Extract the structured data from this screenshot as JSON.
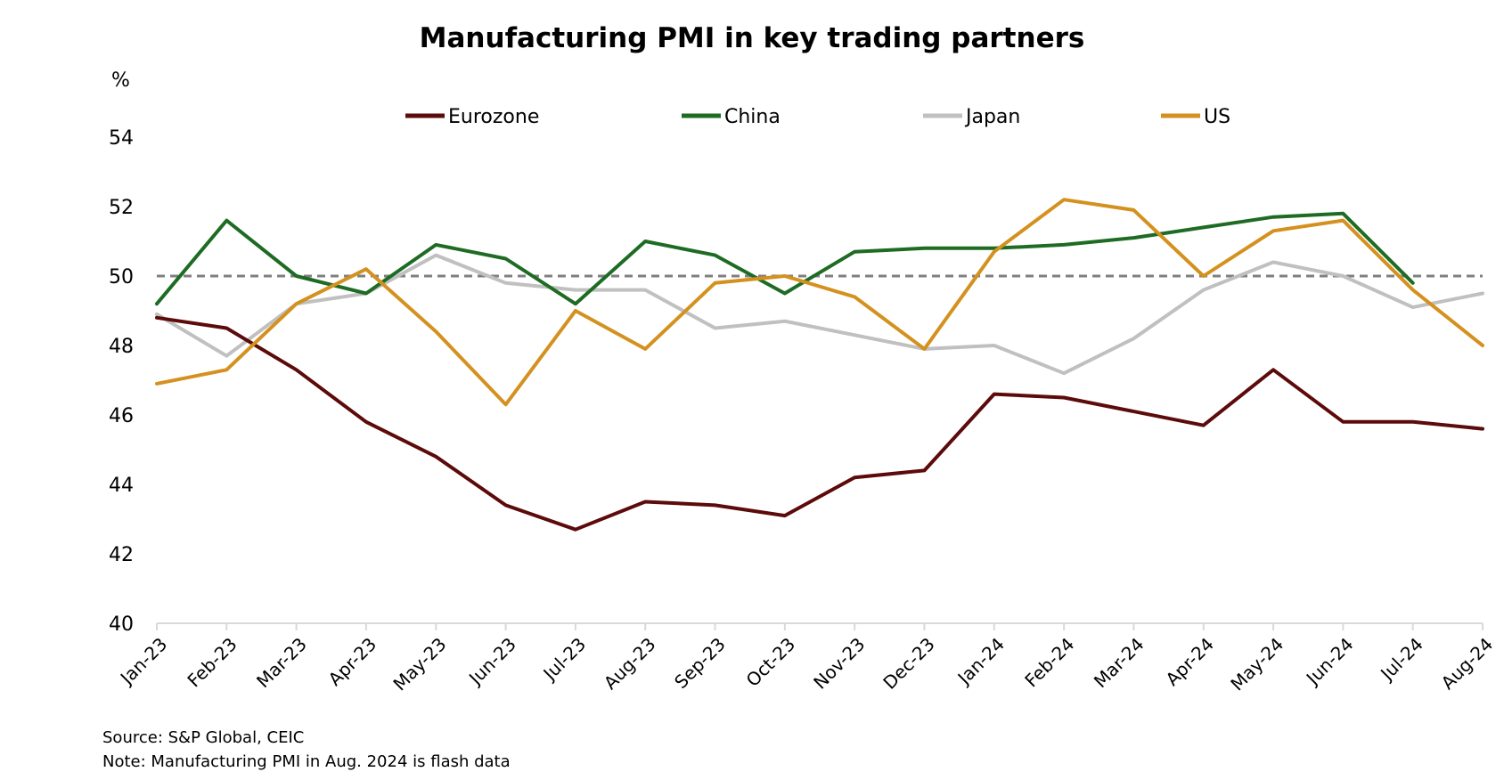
{
  "chart_data": {
    "type": "line",
    "title": "Manufacturing PMI in key trading partners",
    "ylabel": "%",
    "xlabel": "",
    "ylim": [
      40,
      54
    ],
    "yticks": [
      "40",
      "42",
      "44",
      "46",
      "48",
      "50",
      "52",
      "54"
    ],
    "categories": [
      "Jan-23",
      "Feb-23",
      "Mar-23",
      "Apr-23",
      "May-23",
      "Jun-23",
      "Jul-23",
      "Aug-23",
      "Sep-23",
      "Oct-23",
      "Nov-23",
      "Dec-23",
      "Jan-24",
      "Feb-24",
      "Mar-24",
      "Apr-24",
      "May-24",
      "Jun-24",
      "Jul-24",
      "Aug-24"
    ],
    "reference_line": {
      "value": 50,
      "style": "dashed",
      "color": "#7f7f7f"
    },
    "legend_position": "top",
    "grid": false,
    "series": [
      {
        "name": "Eurozone",
        "color": "#5c0a0a",
        "values": [
          48.8,
          48.5,
          47.3,
          45.8,
          44.8,
          43.4,
          42.7,
          43.5,
          43.4,
          43.1,
          44.2,
          44.4,
          46.6,
          46.5,
          46.1,
          45.7,
          47.3,
          45.8,
          45.8,
          45.6
        ]
      },
      {
        "name": "China",
        "color": "#1e6b23",
        "values": [
          49.2,
          51.6,
          50.0,
          49.5,
          50.9,
          50.5,
          49.2,
          51.0,
          50.6,
          49.5,
          50.7,
          50.8,
          50.8,
          50.9,
          51.1,
          51.4,
          51.7,
          51.8,
          49.8,
          null
        ]
      },
      {
        "name": "Japan",
        "color": "#c0c0c0",
        "values": [
          48.9,
          47.7,
          49.2,
          49.5,
          50.6,
          49.8,
          49.6,
          49.6,
          48.5,
          48.7,
          48.3,
          47.9,
          48.0,
          47.2,
          48.2,
          49.6,
          50.4,
          50.0,
          49.1,
          49.5
        ]
      },
      {
        "name": "US",
        "color": "#d4911f",
        "values": [
          46.9,
          47.3,
          49.2,
          50.2,
          48.4,
          46.3,
          49.0,
          47.9,
          49.8,
          50.0,
          49.4,
          47.9,
          50.7,
          52.2,
          51.9,
          50.0,
          51.3,
          51.6,
          49.6,
          48.0
        ]
      }
    ]
  },
  "footnotes": {
    "source": "Source: S&P Global, CEIC",
    "note": "Note: Manufacturing PMI in Aug. 2024 is flash data"
  }
}
